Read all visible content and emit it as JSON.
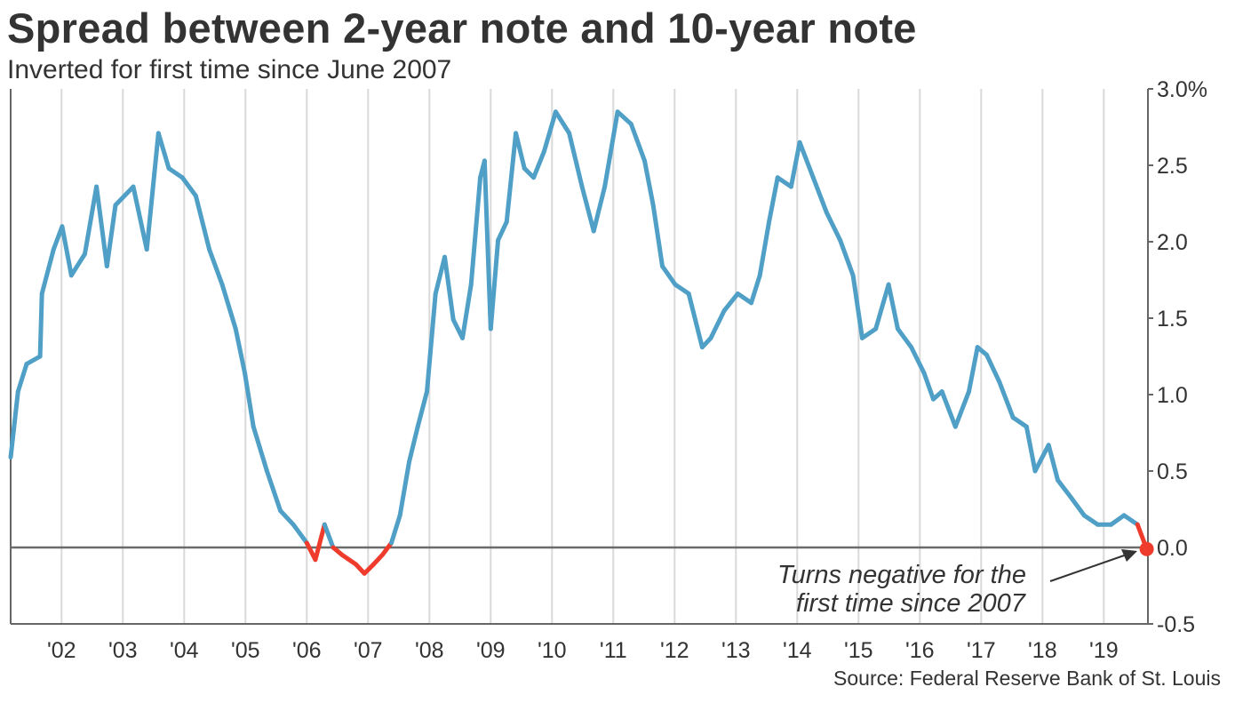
{
  "chart_data": {
    "type": "line",
    "title": "Spread between 2-year note and 10-year note",
    "subtitle": "Inverted for first time since June 2007",
    "source": "Source: Federal Reserve Bank of St. Louis",
    "xlabel": "",
    "ylabel": "",
    "xlim": [
      2001.17,
      2019.72
    ],
    "ylim": [
      -0.5,
      3.0
    ],
    "grid": true,
    "x_ticks": [
      {
        "value": 2002,
        "label": "'02"
      },
      {
        "value": 2003,
        "label": "'03"
      },
      {
        "value": 2004,
        "label": "'04"
      },
      {
        "value": 2005,
        "label": "'05"
      },
      {
        "value": 2006,
        "label": "'06"
      },
      {
        "value": 2007,
        "label": "'07"
      },
      {
        "value": 2008,
        "label": "'08"
      },
      {
        "value": 2009,
        "label": "'09"
      },
      {
        "value": 2010,
        "label": "'10"
      },
      {
        "value": 2011,
        "label": "'11"
      },
      {
        "value": 2012,
        "label": "'12"
      },
      {
        "value": 2013,
        "label": "'13"
      },
      {
        "value": 2014,
        "label": "'14"
      },
      {
        "value": 2015,
        "label": "'15"
      },
      {
        "value": 2016,
        "label": "'16"
      },
      {
        "value": 2017,
        "label": "'17"
      },
      {
        "value": 2018,
        "label": "'18"
      },
      {
        "value": 2019,
        "label": "'19"
      }
    ],
    "y_ticks": [
      {
        "value": 3.0,
        "label": "3.0%"
      },
      {
        "value": 2.5,
        "label": "2.5"
      },
      {
        "value": 2.0,
        "label": "2.0"
      },
      {
        "value": 1.5,
        "label": "1.5"
      },
      {
        "value": 1.0,
        "label": "1.0"
      },
      {
        "value": 0.5,
        "label": "0.5"
      },
      {
        "value": 0.0,
        "label": "0.0"
      },
      {
        "value": -0.5,
        "label": "-0.5"
      }
    ],
    "colors": {
      "positive": "#4f9fc6",
      "negative": "#ee3b2b",
      "grid": "#d9d9d9",
      "axis": "#666666",
      "zero": "#6b6b6b"
    },
    "series": [
      {
        "name": "10-year minus 2-year spread (%)",
        "x": [
          2001.17,
          2001.29,
          2001.43,
          2001.65,
          2001.68,
          2001.87,
          2002.01,
          2002.16,
          2002.38,
          2002.57,
          2002.74,
          2002.88,
          2003.17,
          2003.39,
          2003.58,
          2003.75,
          2003.97,
          2004.19,
          2004.41,
          2004.62,
          2004.84,
          2004.99,
          2005.13,
          2005.35,
          2005.57,
          2005.78,
          2006.0,
          2006.14,
          2006.29,
          2006.43,
          2006.58,
          2006.8,
          2006.94,
          2007.09,
          2007.23,
          2007.38,
          2007.52,
          2007.67,
          2007.81,
          2007.96,
          2008.1,
          2008.25,
          2008.39,
          2008.54,
          2008.68,
          2008.83,
          2008.9,
          2009.0,
          2009.12,
          2009.26,
          2009.41,
          2009.55,
          2009.7,
          2009.87,
          2010.06,
          2010.28,
          2010.49,
          2010.68,
          2010.86,
          2011.07,
          2011.29,
          2011.51,
          2011.65,
          2011.8,
          2012.01,
          2012.23,
          2012.45,
          2012.59,
          2012.81,
          2013.03,
          2013.25,
          2013.39,
          2013.54,
          2013.68,
          2013.9,
          2014.04,
          2014.26,
          2014.48,
          2014.7,
          2014.91,
          2015.06,
          2015.28,
          2015.49,
          2015.64,
          2015.86,
          2016.07,
          2016.22,
          2016.36,
          2016.58,
          2016.8,
          2016.94,
          2017.09,
          2017.3,
          2017.52,
          2017.74,
          2017.88,
          2018.1,
          2018.25,
          2018.46,
          2018.68,
          2018.9,
          2019.12,
          2019.33,
          2019.55,
          2019.7
        ],
        "values": [
          0.59,
          1.02,
          1.2,
          1.25,
          1.66,
          1.95,
          2.1,
          1.78,
          1.92,
          2.36,
          1.84,
          2.24,
          2.36,
          1.95,
          2.71,
          2.48,
          2.42,
          2.3,
          1.95,
          1.72,
          1.43,
          1.14,
          0.79,
          0.5,
          0.24,
          0.15,
          0.03,
          -0.08,
          0.15,
          0.0,
          -0.05,
          -0.11,
          -0.17,
          -0.11,
          -0.05,
          0.03,
          0.21,
          0.56,
          0.79,
          1.02,
          1.66,
          1.9,
          1.49,
          1.37,
          1.72,
          2.42,
          2.53,
          1.43,
          2.01,
          2.13,
          2.71,
          2.48,
          2.42,
          2.59,
          2.85,
          2.71,
          2.36,
          2.07,
          2.36,
          2.85,
          2.77,
          2.53,
          2.24,
          1.84,
          1.72,
          1.66,
          1.31,
          1.37,
          1.55,
          1.66,
          1.6,
          1.78,
          2.13,
          2.42,
          2.36,
          2.65,
          2.42,
          2.19,
          2.01,
          1.78,
          1.37,
          1.43,
          1.72,
          1.43,
          1.31,
          1.14,
          0.97,
          1.02,
          0.79,
          1.02,
          1.31,
          1.26,
          1.08,
          0.85,
          0.79,
          0.5,
          0.67,
          0.44,
          0.33,
          0.21,
          0.15,
          0.15,
          0.21,
          0.15,
          -0.01
        ]
      }
    ],
    "annotations": [
      {
        "x": 2019.7,
        "y": -0.01,
        "lines": [
          "Turns negative for the",
          "first time since 2007"
        ],
        "marker": "red-dot"
      }
    ]
  }
}
